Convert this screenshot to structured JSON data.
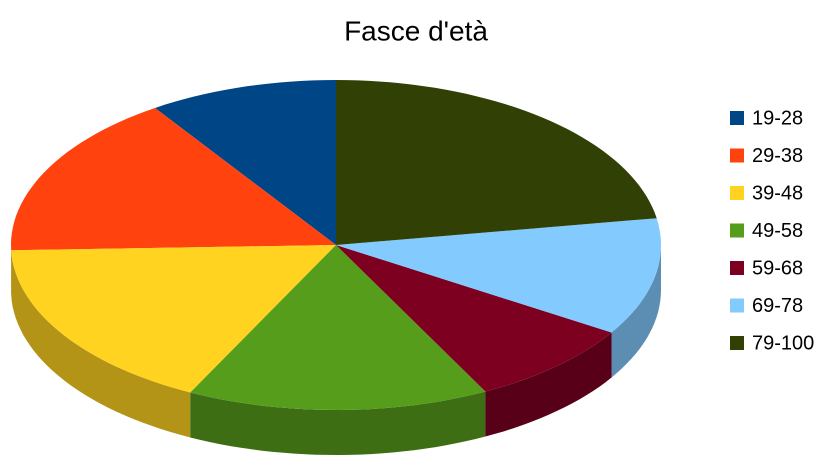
{
  "chart_data": {
    "type": "pie3d",
    "title": "Fasce d'età",
    "categories": [
      "19-28",
      "29-38",
      "39-48",
      "49-58",
      "59-68",
      "69-78",
      "79-100"
    ],
    "values": [
      9.4,
      16.1,
      17.1,
      15,
      8.5,
      11.5,
      22.4
    ],
    "colors": [
      "#004586",
      "#ff420e",
      "#ffd320",
      "#579d1c",
      "#7e0021",
      "#83caff",
      "#314004"
    ],
    "legend": "right"
  }
}
